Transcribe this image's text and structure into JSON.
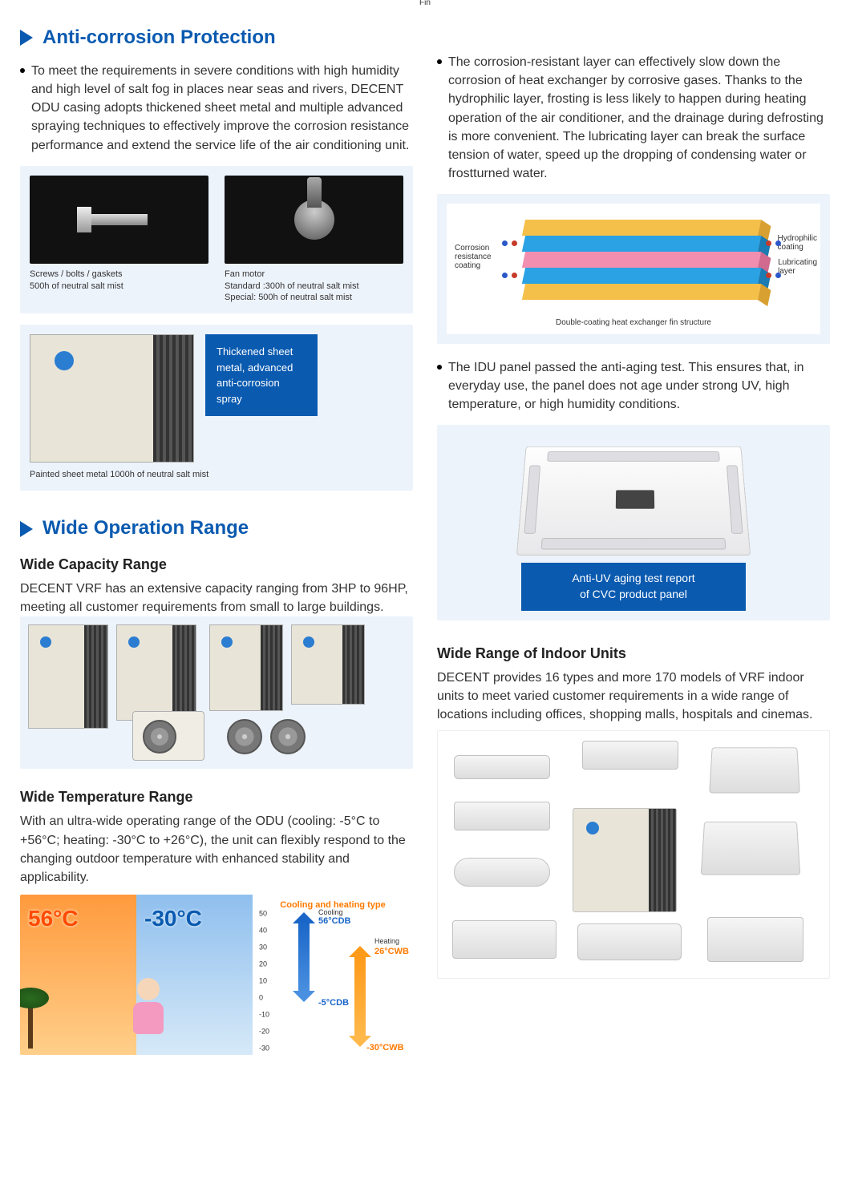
{
  "colors": {
    "brand_blue": "#0a5ab0",
    "panel_bg": "#edf3fb",
    "odu_body": "#e8e4d8",
    "hot_text": "#ff4a00",
    "cold_text": "#0a5ab0",
    "orange": "#ff7a00"
  },
  "section1": {
    "title": "Anti-corrosion Protection",
    "bullet1": "To meet the requirements in severe conditions with high humidity and high level of salt fog in places near seas and rivers, DECENT ODU casing adopts thickened sheet metal and multiple advanced spraying techniques to effectively improve the corrosion resistance performance and extend the service life of the air conditioning unit.",
    "img1_caption_a": "Screws / bolts / gaskets",
    "img1_caption_b": "500h of neutral salt mist",
    "img2_caption_a": "Fan motor",
    "img2_caption_b": "Standard :300h of neutral salt mist",
    "img2_caption_c": "Special: 500h of neutral salt mist",
    "odu_blue_box": "Thickened sheet metal, advanced anti-corrosion spray",
    "odu_caption": "Painted sheet metal 1000h of neutral salt mist",
    "bullet2": "The corrosion-resistant layer can effectively slow down the corrosion of heat exchanger by corrosive gases. Thanks to the hydrophilic layer, frosting is less likely to happen during heating operation of the air conditioner, and the drainage during defrosting is more convenient. The lubricating layer can break the surface tension of water, speed up the dropping of condensing water or frostturned water.",
    "fin": {
      "top_label": "Fin",
      "left_label_a": "Corrosion",
      "left_label_b": "resistance",
      "left_label_c": "coating",
      "right_label_a": "Hydrophilic",
      "right_label_b": "coating",
      "right_label2_a": "Lubricating",
      "right_label2_b": "layer",
      "layers": [
        {
          "color": "#f5c04a",
          "end": "#d8a030"
        },
        {
          "color": "#2aa2e3",
          "end": "#1b7bb3"
        },
        {
          "color": "#f28fb0",
          "end": "#d16a8e"
        },
        {
          "color": "#2aa2e3",
          "end": "#1b7bb3"
        },
        {
          "color": "#f5c04a",
          "end": "#d8a030"
        }
      ],
      "dot_colors": [
        "#2a58c8",
        "#c83a2a"
      ],
      "caption": "Double-coating heat exchanger fin structure"
    },
    "bullet3": "The IDU panel passed the anti-aging test. This ensures that, in everyday use, the panel does not age under strong UV, high temperature, or high humidity conditions.",
    "idu_banner_a": "Anti-UV aging test report",
    "idu_banner_b": "of CVC product panel"
  },
  "section2": {
    "title": "Wide Operation Range",
    "sub1_title": "Wide Capacity Range",
    "sub1_text": "DECENT VRF has an extensive capacity ranging from 3HP to 96HP, meeting all customer requirements from small to large buildings.",
    "sub2_title": "Wide Temperature Range",
    "sub2_text": "With an ultra-wide operating range of the ODU (cooling: -5°C to +56°C; heating: -30°C to +26°C), the unit can flexibly respond to the changing outdoor temperature with enhanced stability and applicability.",
    "temp": {
      "hot_value": "56°C",
      "cold_value": "-30°C",
      "right_title": "Cooling and heating type",
      "cooling_label": "Cooling",
      "heating_label": "Heating",
      "axis_ticks": [
        "50",
        "40",
        "30",
        "20",
        "10",
        "0",
        "-10",
        "-20",
        "-30"
      ],
      "lbl_cool_hi": "56°CDB",
      "lbl_cool_lo": "-5°CDB",
      "lbl_heat_hi": "26°CWB",
      "lbl_heat_lo": "-30°CWB",
      "arrow_blue": "#1a66c8",
      "arrow_orange": "#ff9a1a"
    },
    "sub3_title": "Wide Range of Indoor Units",
    "sub3_text": "DECENT provides 16 types and more 170 models of VRF indoor units to meet varied customer requirements in a wide range of locations including offices, shopping malls, hospitals and cinemas."
  }
}
